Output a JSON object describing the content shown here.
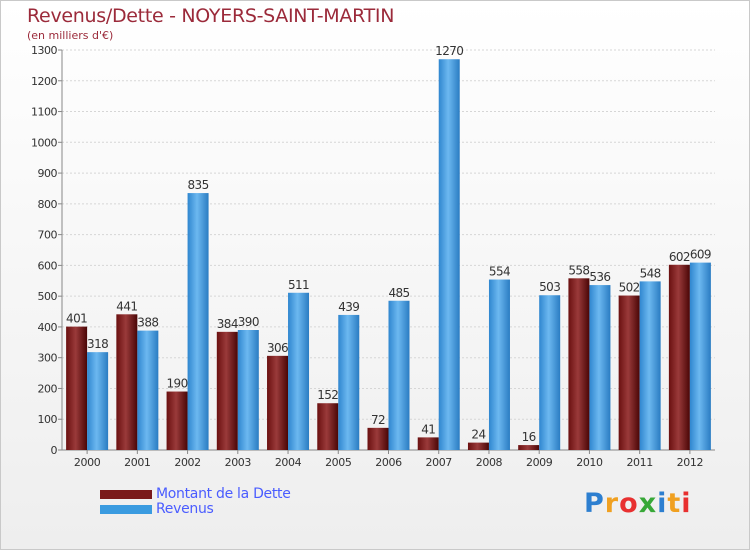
{
  "chart_data": {
    "type": "bar",
    "title": "Revenus/Dette - NOYERS-SAINT-MARTIN",
    "subtitle": "(en milliers d'€)",
    "categories": [
      "2000",
      "2001",
      "2002",
      "2003",
      "2004",
      "2005",
      "2006",
      "2007",
      "2008",
      "2009",
      "2010",
      "2011",
      "2012"
    ],
    "series": [
      {
        "name": "Montant de la Dette",
        "color": "#7a1a1a",
        "values": [
          401,
          441,
          190,
          384,
          306,
          152,
          72,
          41,
          24,
          16,
          558,
          502,
          602
        ]
      },
      {
        "name": "Revenus",
        "color": "#3a9be0",
        "values": [
          318,
          388,
          835,
          390,
          511,
          439,
          485,
          1270,
          554,
          503,
          536,
          548,
          609
        ]
      }
    ],
    "ylim": [
      0,
      1300
    ],
    "yticks": [
      0,
      100,
      200,
      300,
      400,
      500,
      600,
      700,
      800,
      900,
      1000,
      1100,
      1200,
      1300
    ],
    "grid": true,
    "legend_position": "bottom-left"
  },
  "logo": {
    "letters": [
      "P",
      "r",
      "o",
      "x",
      "i",
      "t",
      "i"
    ],
    "colors": [
      "#2d7fd0",
      "#f0a020",
      "#e83030",
      "#38a838",
      "#2d7fd0",
      "#f0a020",
      "#e83030"
    ]
  }
}
